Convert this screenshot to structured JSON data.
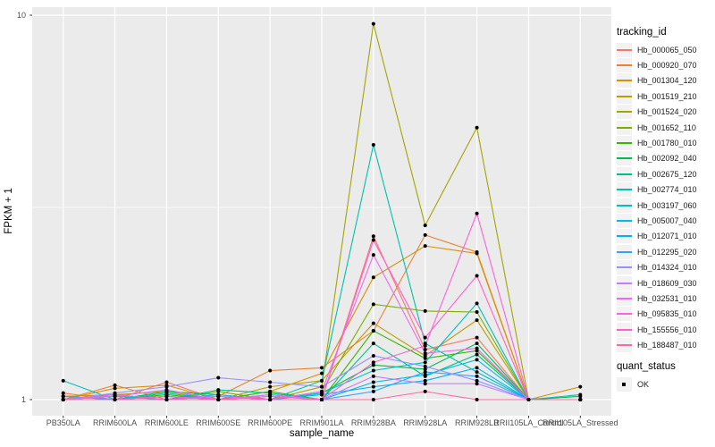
{
  "style": {
    "panel_background": "#EBEBEB",
    "grid_color": "#FFFFFF",
    "tick_color": "#333333",
    "axis_text_color": "#4D4D4D",
    "point_color": "#000000",
    "legend_key_background": "#F2F2F2"
  },
  "legend": {
    "tracking_title": "tracking_id",
    "quant_title": "quant_status",
    "quant_value": "OK"
  },
  "chart_data": {
    "type": "line",
    "x_type": "categorical",
    "y_scale": "log10",
    "title": "",
    "xlabel": "sample_name",
    "ylabel": "FPKM + 1",
    "ylim": [
      0.93,
      10.6
    ],
    "y_ticks": [
      1,
      10
    ],
    "y_minor_ticks": [
      3.162
    ],
    "grid": true,
    "legend_position": "right",
    "point_shape": "black-dot",
    "quant_status": "OK",
    "categories": [
      "PB350LA",
      "RRIM600LA",
      "RRIM600LE",
      "RRIM600SE",
      "RRIM600PE",
      "RRIM901LA",
      "RRIM928BA",
      "RRIM928LA",
      "RRIM928LB",
      "RRII105LA_Control",
      "RRII105LA_Stressed"
    ],
    "series": [
      {
        "name": "Hb_000065_050",
        "color": "#F8766D",
        "values": [
          1.04,
          1.0,
          1.11,
          1.0,
          1.02,
          1.0,
          2.66,
          1.35,
          1.45,
          1.0,
          1.0
        ]
      },
      {
        "name": "Hb_000920_070",
        "color": "#EA8331",
        "values": [
          1.0,
          1.09,
          1.0,
          1.02,
          1.19,
          1.21,
          1.51,
          2.68,
          2.42,
          1.0,
          1.0
        ]
      },
      {
        "name": "Hb_001304_120",
        "color": "#D89000",
        "values": [
          1.0,
          1.07,
          1.09,
          1.0,
          1.05,
          1.17,
          2.08,
          2.51,
          2.4,
          1.0,
          1.08
        ]
      },
      {
        "name": "Hb_001519_210",
        "color": "#C09B00",
        "values": [
          1.02,
          1.03,
          1.05,
          1.0,
          1.08,
          1.12,
          1.58,
          1.3,
          1.61,
          1.0,
          1.0
        ]
      },
      {
        "name": "Hb_001524_020",
        "color": "#A3A500",
        "values": [
          1.0,
          1.0,
          1.02,
          1.0,
          1.0,
          1.08,
          9.5,
          2.84,
          5.1,
          1.0,
          1.0
        ]
      },
      {
        "name": "Hb_001652_110",
        "color": "#7CAE00",
        "values": [
          1.0,
          1.02,
          1.0,
          1.05,
          1.0,
          1.05,
          1.77,
          1.7,
          1.69,
          1.0,
          1.0
        ]
      },
      {
        "name": "Hb_001780_010",
        "color": "#39B600",
        "values": [
          1.0,
          1.0,
          1.03,
          1.0,
          1.05,
          1.0,
          1.51,
          1.28,
          1.34,
          1.0,
          1.0
        ]
      },
      {
        "name": "Hb_002092_040",
        "color": "#00BB4E",
        "values": [
          1.02,
          1.0,
          1.05,
          1.03,
          1.0,
          1.04,
          1.23,
          1.2,
          1.4,
          1.0,
          1.02
        ]
      },
      {
        "name": "Hb_002675_120",
        "color": "#00C087",
        "values": [
          1.0,
          1.03,
          1.0,
          1.06,
          1.04,
          1.0,
          1.4,
          1.15,
          1.31,
          1.0,
          1.0
        ]
      },
      {
        "name": "Hb_002774_010",
        "color": "#00C1AB",
        "values": [
          1.0,
          1.0,
          1.04,
          1.0,
          1.0,
          1.12,
          4.6,
          1.4,
          1.18,
          1.0,
          1.03
        ]
      },
      {
        "name": "Hb_003197_060",
        "color": "#00BFC4",
        "values": [
          1.12,
          1.0,
          1.0,
          1.02,
          1.0,
          1.04,
          1.19,
          1.25,
          1.78,
          1.0,
          1.0
        ]
      },
      {
        "name": "Hb_005007_040",
        "color": "#00BAE0",
        "values": [
          1.0,
          1.02,
          1.0,
          1.0,
          1.03,
          1.0,
          1.11,
          1.16,
          1.27,
          1.0,
          1.0
        ]
      },
      {
        "name": "Hb_012071_010",
        "color": "#00B0F6",
        "values": [
          1.0,
          1.0,
          1.02,
          1.0,
          1.0,
          1.03,
          1.08,
          1.12,
          1.21,
          1.0,
          1.0
        ]
      },
      {
        "name": "Hb_012295_020",
        "color": "#35A2FF",
        "values": [
          1.02,
          1.0,
          1.0,
          1.03,
          1.0,
          1.0,
          1.05,
          1.18,
          1.15,
          1.0,
          1.0
        ]
      },
      {
        "name": "Hb_014324_010",
        "color": "#9590FF",
        "values": [
          1.0,
          1.04,
          1.08,
          1.14,
          1.11,
          1.08,
          1.3,
          1.22,
          1.12,
          1.0,
          1.0
        ]
      },
      {
        "name": "Hb_018609_030",
        "color": "#C77CFF",
        "values": [
          1.0,
          1.02,
          1.06,
          1.0,
          1.03,
          1.0,
          1.15,
          1.1,
          1.1,
          1.0,
          1.0
        ]
      },
      {
        "name": "Hb_032531_010",
        "color": "#E76BF3",
        "values": [
          1.0,
          1.0,
          1.0,
          1.02,
          1.0,
          1.05,
          2.38,
          1.32,
          1.36,
          1.0,
          1.0
        ]
      },
      {
        "name": "Hb_095835_010",
        "color": "#FA62DB",
        "values": [
          1.0,
          1.0,
          1.02,
          1.0,
          1.0,
          1.0,
          1.25,
          1.38,
          3.05,
          1.0,
          1.0
        ]
      },
      {
        "name": "Hb_155556_010",
        "color": "#FF61CC",
        "values": [
          1.0,
          1.03,
          1.0,
          1.0,
          1.02,
          1.0,
          2.6,
          1.45,
          2.1,
          1.0,
          1.0
        ]
      },
      {
        "name": "Hb_188487_010",
        "color": "#FF67A4",
        "values": [
          1.0,
          1.0,
          1.0,
          1.0,
          1.0,
          1.0,
          1.0,
          1.05,
          1.0,
          1.0,
          1.0
        ]
      }
    ]
  }
}
